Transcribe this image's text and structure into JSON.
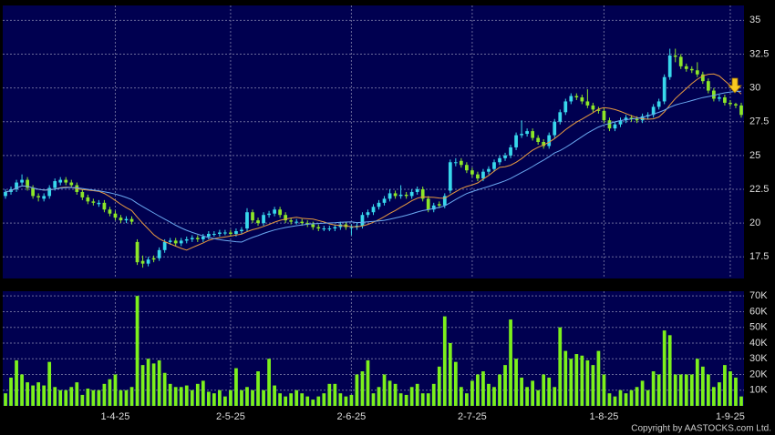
{
  "chart_data": {
    "type": "candlestick",
    "footer": "Copyright by AASTOCKS.com Ltd.",
    "up_color": "#38d8ec",
    "down_color": "#8ce628",
    "volume_color": "#7cf01c",
    "ma_colors": [
      "#e89a40",
      "#6aa8f0"
    ],
    "ma_periods": [
      10,
      20
    ],
    "grid": true,
    "xlim": [
      -0.5,
      134.5
    ],
    "xticks": [
      {
        "value": 20,
        "label": "1-4-25"
      },
      {
        "value": 41,
        "label": "2-5-25"
      },
      {
        "value": 63,
        "label": "2-6-25"
      },
      {
        "value": 85,
        "label": "2-7-25"
      },
      {
        "value": 109,
        "label": "1-8-25"
      },
      {
        "value": 132,
        "label": "1-9-25"
      }
    ],
    "ylim": [
      15.9,
      36.1
    ],
    "yticks": [
      17.5,
      20,
      22.5,
      25,
      27.5,
      30,
      32.5,
      35
    ],
    "vlim": [
      0,
      73000
    ],
    "vticks": [
      {
        "value": 10000,
        "label": "10K"
      },
      {
        "value": 20000,
        "label": "20K"
      },
      {
        "value": 30000,
        "label": "30K"
      },
      {
        "value": 40000,
        "label": "40K"
      },
      {
        "value": 50000,
        "label": "50K"
      },
      {
        "value": 60000,
        "label": "60K"
      },
      {
        "value": 70000,
        "label": "70K"
      }
    ],
    "open": [
      22.0,
      22.3,
      22.5,
      23.0,
      23.2,
      22.6,
      22.0,
      21.8,
      22.0,
      22.6,
      23.0,
      23.2,
      23.0,
      22.8,
      22.3,
      21.9,
      21.6,
      21.4,
      21.5,
      21.0,
      20.7,
      20.4,
      20.2,
      20.3,
      18.6,
      17.2,
      17.0,
      17.4,
      17.4,
      18.0,
      18.6,
      18.7,
      18.5,
      18.7,
      18.8,
      18.9,
      18.8,
      19.0,
      19.2,
      19.2,
      19.3,
      19.3,
      19.2,
      19.4,
      19.6,
      20.8,
      20.2,
      20.0,
      20.6,
      20.7,
      21.0,
      20.6,
      20.2,
      20.1,
      20.1,
      20.0,
      19.9,
      19.7,
      19.6,
      19.6,
      19.6,
      19.7,
      19.9,
      19.7,
      19.7,
      19.8,
      20.6,
      20.8,
      21.2,
      21.5,
      21.8,
      22.2,
      22.0,
      22.1,
      22.0,
      22.3,
      22.5,
      21.8,
      21.0,
      21.4,
      21.3,
      22.4,
      24.5,
      24.6,
      24.3,
      23.9,
      23.6,
      23.3,
      23.8,
      24.0,
      24.5,
      24.8,
      25.0,
      25.6,
      26.5,
      26.6,
      26.8,
      26.3,
      26.0,
      25.7,
      26.5,
      27.5,
      28.2,
      29.0,
      29.4,
      29.3,
      29.0,
      28.7,
      28.4,
      28.3,
      27.6,
      27.0,
      27.3,
      27.6,
      27.8,
      27.7,
      27.6,
      27.9,
      28.0,
      28.6,
      29.0,
      30.8,
      32.4,
      32.3,
      31.6,
      31.4,
      31.3,
      31.0,
      30.5,
      29.8,
      29.2,
      29.3,
      28.9,
      28.8,
      28.7
    ],
    "high": [
      22.5,
      22.7,
      23.2,
      23.6,
      23.4,
      22.8,
      22.2,
      22.2,
      22.8,
      23.3,
      23.4,
      23.4,
      23.2,
      23.0,
      22.5,
      22.1,
      21.8,
      21.7,
      21.7,
      21.2,
      20.9,
      20.6,
      20.5,
      20.5,
      18.8,
      17.6,
      17.5,
      17.6,
      18.2,
      18.8,
      18.9,
      18.9,
      18.9,
      19.0,
      19.1,
      19.1,
      19.2,
      19.4,
      19.4,
      19.5,
      19.5,
      19.5,
      19.6,
      19.7,
      21.1,
      21.0,
      20.4,
      20.8,
      20.9,
      21.2,
      21.2,
      20.8,
      20.4,
      20.3,
      20.3,
      20.2,
      20.1,
      19.9,
      19.8,
      19.8,
      19.9,
      20.1,
      20.1,
      19.9,
      20.0,
      20.8,
      21.0,
      21.4,
      21.7,
      22.0,
      22.5,
      22.4,
      22.8,
      22.3,
      22.5,
      22.7,
      22.7,
      22.0,
      21.5,
      21.6,
      22.2,
      24.7,
      24.8,
      24.8,
      24.5,
      24.1,
      23.8,
      24.0,
      24.2,
      24.7,
      25.0,
      25.2,
      25.8,
      26.7,
      27.6,
      27.0,
      27.0,
      26.5,
      26.2,
      26.7,
      27.7,
      28.4,
      29.2,
      29.6,
      29.6,
      29.5,
      29.9,
      28.9,
      28.6,
      28.5,
      27.8,
      27.5,
      27.8,
      28.0,
      28.0,
      27.9,
      28.1,
      28.2,
      28.8,
      29.2,
      31.0,
      32.9,
      32.9,
      32.5,
      31.8,
      31.6,
      31.9,
      31.2,
      30.7,
      30.0,
      29.5,
      29.5,
      29.1,
      28.9,
      28.9
    ],
    "low": [
      21.8,
      22.1,
      22.3,
      22.8,
      22.4,
      21.8,
      21.6,
      21.6,
      21.8,
      22.4,
      22.8,
      22.8,
      22.6,
      22.1,
      21.7,
      21.4,
      21.3,
      21.2,
      20.8,
      20.5,
      20.2,
      20.0,
      20.0,
      19.9,
      16.9,
      16.7,
      16.8,
      17.1,
      17.2,
      17.8,
      18.4,
      18.3,
      18.3,
      18.5,
      18.6,
      18.6,
      18.6,
      18.8,
      19.0,
      19.0,
      19.1,
      19.0,
      19.0,
      19.2,
      19.4,
      20.0,
      19.8,
      19.8,
      20.4,
      20.5,
      20.4,
      20.0,
      19.9,
      19.9,
      19.8,
      19.7,
      19.5,
      19.4,
      19.4,
      19.4,
      19.4,
      19.5,
      19.5,
      19.1,
      19.5,
      19.6,
      20.4,
      20.6,
      21.0,
      21.3,
      21.6,
      21.8,
      21.8,
      21.8,
      21.8,
      22.1,
      21.6,
      20.8,
      20.8,
      21.1,
      21.1,
      22.2,
      24.2,
      24.1,
      23.7,
      23.4,
      23.1,
      23.1,
      23.6,
      23.8,
      24.3,
      24.6,
      24.8,
      25.4,
      26.3,
      26.4,
      26.1,
      25.8,
      25.5,
      25.5,
      26.3,
      27.3,
      28.0,
      28.8,
      29.1,
      28.8,
      28.5,
      28.2,
      28.1,
      27.4,
      26.8,
      26.8,
      27.1,
      27.4,
      27.5,
      27.4,
      27.4,
      27.7,
      27.8,
      28.4,
      28.8,
      30.6,
      31.9,
      31.4,
      31.2,
      31.1,
      30.8,
      30.3,
      29.6,
      29.0,
      29.0,
      28.7,
      28.6,
      28.5,
      27.8
    ],
    "close": [
      22.3,
      22.5,
      23.0,
      23.2,
      22.6,
      22.0,
      21.9,
      22.0,
      22.6,
      23.1,
      23.2,
      23.0,
      22.8,
      22.3,
      21.9,
      21.6,
      21.5,
      21.5,
      21.0,
      20.7,
      20.4,
      20.2,
      20.3,
      20.1,
      17.1,
      17.0,
      17.3,
      17.3,
      18.0,
      18.6,
      18.7,
      18.5,
      18.7,
      18.8,
      18.9,
      18.8,
      19.0,
      19.2,
      19.2,
      19.3,
      19.3,
      19.2,
      19.4,
      19.5,
      20.8,
      20.2,
      20.0,
      20.6,
      20.7,
      21.0,
      20.6,
      20.2,
      20.1,
      20.1,
      20.0,
      19.9,
      19.7,
      19.6,
      19.6,
      19.6,
      19.7,
      19.9,
      19.7,
      19.7,
      19.8,
      20.6,
      20.8,
      21.2,
      21.5,
      21.8,
      22.2,
      22.0,
      22.1,
      22.0,
      22.3,
      22.5,
      21.8,
      21.0,
      21.3,
      21.3,
      22.0,
      24.5,
      24.5,
      24.3,
      23.9,
      23.6,
      23.3,
      23.8,
      24.0,
      24.5,
      24.8,
      25.0,
      25.6,
      26.5,
      26.6,
      26.8,
      26.3,
      26.0,
      25.7,
      26.5,
      27.5,
      28.2,
      29.0,
      29.4,
      29.3,
      29.0,
      28.7,
      28.4,
      28.3,
      27.6,
      27.0,
      27.3,
      27.6,
      27.8,
      27.7,
      27.6,
      27.9,
      28.0,
      28.6,
      29.0,
      30.8,
      32.4,
      32.3,
      31.6,
      31.4,
      31.3,
      31.0,
      30.5,
      29.8,
      29.2,
      29.3,
      28.9,
      28.8,
      28.7,
      28.0
    ],
    "volume": [
      8000,
      18000,
      29000,
      20000,
      15000,
      13000,
      15000,
      13000,
      28000,
      12000,
      10000,
      10000,
      12000,
      15000,
      7000,
      11000,
      10000,
      10000,
      14000,
      17000,
      20000,
      10000,
      10000,
      12000,
      70000,
      26000,
      30000,
      27000,
      29000,
      21000,
      14000,
      12000,
      12000,
      13000,
      10000,
      14000,
      16000,
      9000,
      8000,
      10000,
      6000,
      10000,
      24000,
      10000,
      12000,
      10000,
      22000,
      10000,
      30000,
      13000,
      8000,
      6000,
      8000,
      10000,
      8000,
      6000,
      4000,
      6000,
      8000,
      14000,
      14000,
      8000,
      6000,
      7000,
      20000,
      22000,
      29000,
      8000,
      12000,
      20000,
      16000,
      14000,
      8000,
      7000,
      12000,
      14000,
      8000,
      8000,
      14000,
      25000,
      57000,
      40000,
      28000,
      12000,
      8000,
      16000,
      20000,
      22000,
      14000,
      12000,
      20000,
      26000,
      55000,
      30000,
      18000,
      12000,
      16000,
      10000,
      20000,
      18000,
      12000,
      50000,
      35000,
      30000,
      33000,
      32000,
      29000,
      26000,
      35000,
      20000,
      8000,
      6000,
      10000,
      8000,
      10000,
      12000,
      16000,
      10000,
      22000,
      20000,
      48000,
      45000,
      20000,
      20000,
      20000,
      20000,
      30000,
      25000,
      20000,
      12000,
      15000,
      26000,
      22000,
      18000,
      6000
    ]
  }
}
